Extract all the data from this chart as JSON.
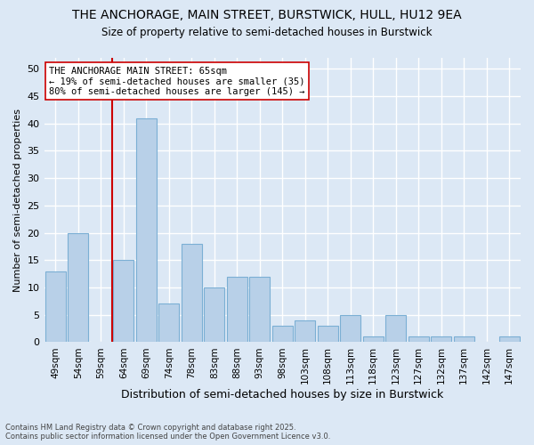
{
  "title_line1": "THE ANCHORAGE, MAIN STREET, BURSTWICK, HULL, HU12 9EA",
  "title_line2": "Size of property relative to semi-detached houses in Burstwick",
  "xlabel": "Distribution of semi-detached houses by size in Burstwick",
  "ylabel": "Number of semi-detached properties",
  "categories": [
    "49sqm",
    "54sqm",
    "59sqm",
    "64sqm",
    "69sqm",
    "74sqm",
    "78sqm",
    "83sqm",
    "88sqm",
    "93sqm",
    "98sqm",
    "103sqm",
    "108sqm",
    "113sqm",
    "118sqm",
    "123sqm",
    "127sqm",
    "132sqm",
    "137sqm",
    "142sqm",
    "147sqm"
  ],
  "values": [
    13,
    20,
    0,
    15,
    41,
    7,
    18,
    10,
    12,
    12,
    3,
    4,
    3,
    5,
    1,
    5,
    1,
    1,
    1,
    0,
    1
  ],
  "bar_color": "#b8d0e8",
  "bar_edge_color": "#7bafd4",
  "background_color": "#dce8f5",
  "grid_color": "#ffffff",
  "marker_line_color": "#cc0000",
  "marker_label": "THE ANCHORAGE MAIN STREET: 65sqm",
  "marker_pct_smaller": "19% of semi-detached houses are smaller (35)",
  "marker_pct_larger": "80% of semi-detached houses are larger (145)",
  "annotation_box_color": "#ffffff",
  "annotation_box_edge": "#cc0000",
  "ylim": [
    0,
    52
  ],
  "yticks": [
    0,
    5,
    10,
    15,
    20,
    25,
    30,
    35,
    40,
    45,
    50
  ],
  "footer_line1": "Contains HM Land Registry data © Crown copyright and database right 2025.",
  "footer_line2": "Contains public sector information licensed under the Open Government Licence v3.0."
}
